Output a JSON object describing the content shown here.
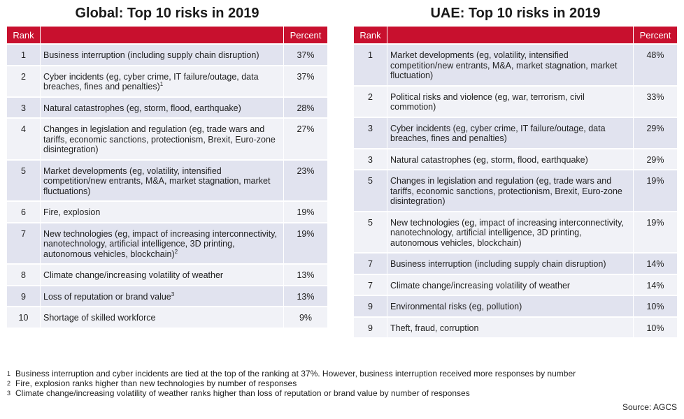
{
  "global": {
    "title": "Global: Top 10 risks in 2019",
    "headers": {
      "rank": "Rank",
      "risk": "",
      "percent": "Percent"
    },
    "rows": [
      {
        "rank": "1",
        "risk": "Business interruption (including supply chain disruption)",
        "sup": "",
        "percent": "37%"
      },
      {
        "rank": "2",
        "risk": "Cyber incidents (eg, cyber crime, IT failure/outage, data breaches, fines and penalties)",
        "sup": "1",
        "percent": "37%"
      },
      {
        "rank": "3",
        "risk": "Natural catastrophes (eg, storm, flood, earthquake)",
        "sup": "",
        "percent": "28%"
      },
      {
        "rank": "4",
        "risk": "Changes in legislation and regulation (eg, trade wars and tariffs, economic sanctions, protectionism, Brexit, Euro-zone disintegration)",
        "sup": "",
        "percent": "27%"
      },
      {
        "rank": "5",
        "risk": "Market developments (eg, volatility, intensified competition/new entrants, M&A, market stagnation, market fluctuations)",
        "sup": "",
        "percent": "23%"
      },
      {
        "rank": "6",
        "risk": "Fire, explosion",
        "sup": "",
        "percent": "19%"
      },
      {
        "rank": "7",
        "risk": "New technologies (eg, impact of increasing interconnectivity, nanotechnology, artificial intelligence, 3D printing, autonomous vehicles, blockchain)",
        "sup": "2",
        "percent": "19%"
      },
      {
        "rank": "8",
        "risk": "Climate change/increasing volatility of weather",
        "sup": "",
        "percent": "13%"
      },
      {
        "rank": "9",
        "risk": "Loss of reputation or brand value",
        "sup": "3",
        "percent": "13%"
      },
      {
        "rank": "10",
        "risk": "Shortage of skilled workforce",
        "sup": "",
        "percent": "9%"
      }
    ]
  },
  "uae": {
    "title": "UAE: Top 10 risks in 2019",
    "headers": {
      "rank": "Rank",
      "risk": "",
      "percent": "Percent"
    },
    "rows": [
      {
        "rank": "1",
        "risk": "Market developments (eg, volatility, intensified competition/new entrants, M&A, market stagnation, market fluctuation)",
        "sup": "",
        "percent": "48%"
      },
      {
        "rank": "2",
        "risk": "Political risks and violence (eg, war, terrorism, civil commotion)",
        "sup": "",
        "percent": "33%"
      },
      {
        "rank": "3",
        "risk": "Cyber incidents (eg, cyber crime, IT failure/outage, data breaches, fines and penalties)",
        "sup": "",
        "percent": "29%"
      },
      {
        "rank": "3",
        "risk": "Natural catastrophes (eg, storm, flood, earthquake)",
        "sup": "",
        "percent": "29%"
      },
      {
        "rank": "5",
        "risk": "Changes in legislation and regulation (eg, trade wars and tariffs, economic sanctions, protectionism, Brexit, Euro-zone disintegration)",
        "sup": "",
        "percent": "19%"
      },
      {
        "rank": "5",
        "risk": "New technologies (eg, impact of increasing interconnectivity, nanotechnology, artificial intelligence, 3D printing, autonomous vehicles, blockchain)",
        "sup": "",
        "percent": "19%"
      },
      {
        "rank": "7",
        "risk": "Business interruption (including supply chain disruption)",
        "sup": "",
        "percent": "14%"
      },
      {
        "rank": "7",
        "risk": "Climate change/increasing volatility of weather",
        "sup": "",
        "percent": "14%"
      },
      {
        "rank": "9",
        "risk": "Environmental risks (eg, pollution)",
        "sup": "",
        "percent": "10%"
      },
      {
        "rank": "9",
        "risk": "Theft, fraud, corruption",
        "sup": "",
        "percent": "10%"
      }
    ]
  },
  "footnotes": [
    {
      "mark": "1",
      "text": "Business interruption and cyber incidents are tied at the top of the ranking at 37%. However, business interruption received more responses by number"
    },
    {
      "mark": "2",
      "text": "Fire, explosion ranks higher than new technologies by number of responses"
    },
    {
      "mark": "3",
      "text": "Climate change/increasing volatility of weather ranks higher than loss of reputation or brand value by number of responses"
    }
  ],
  "source": "Source: AGCS",
  "colors": {
    "header_bg": "#c8102e",
    "row_odd": "#e1e3ef",
    "row_even": "#f1f2f7"
  }
}
